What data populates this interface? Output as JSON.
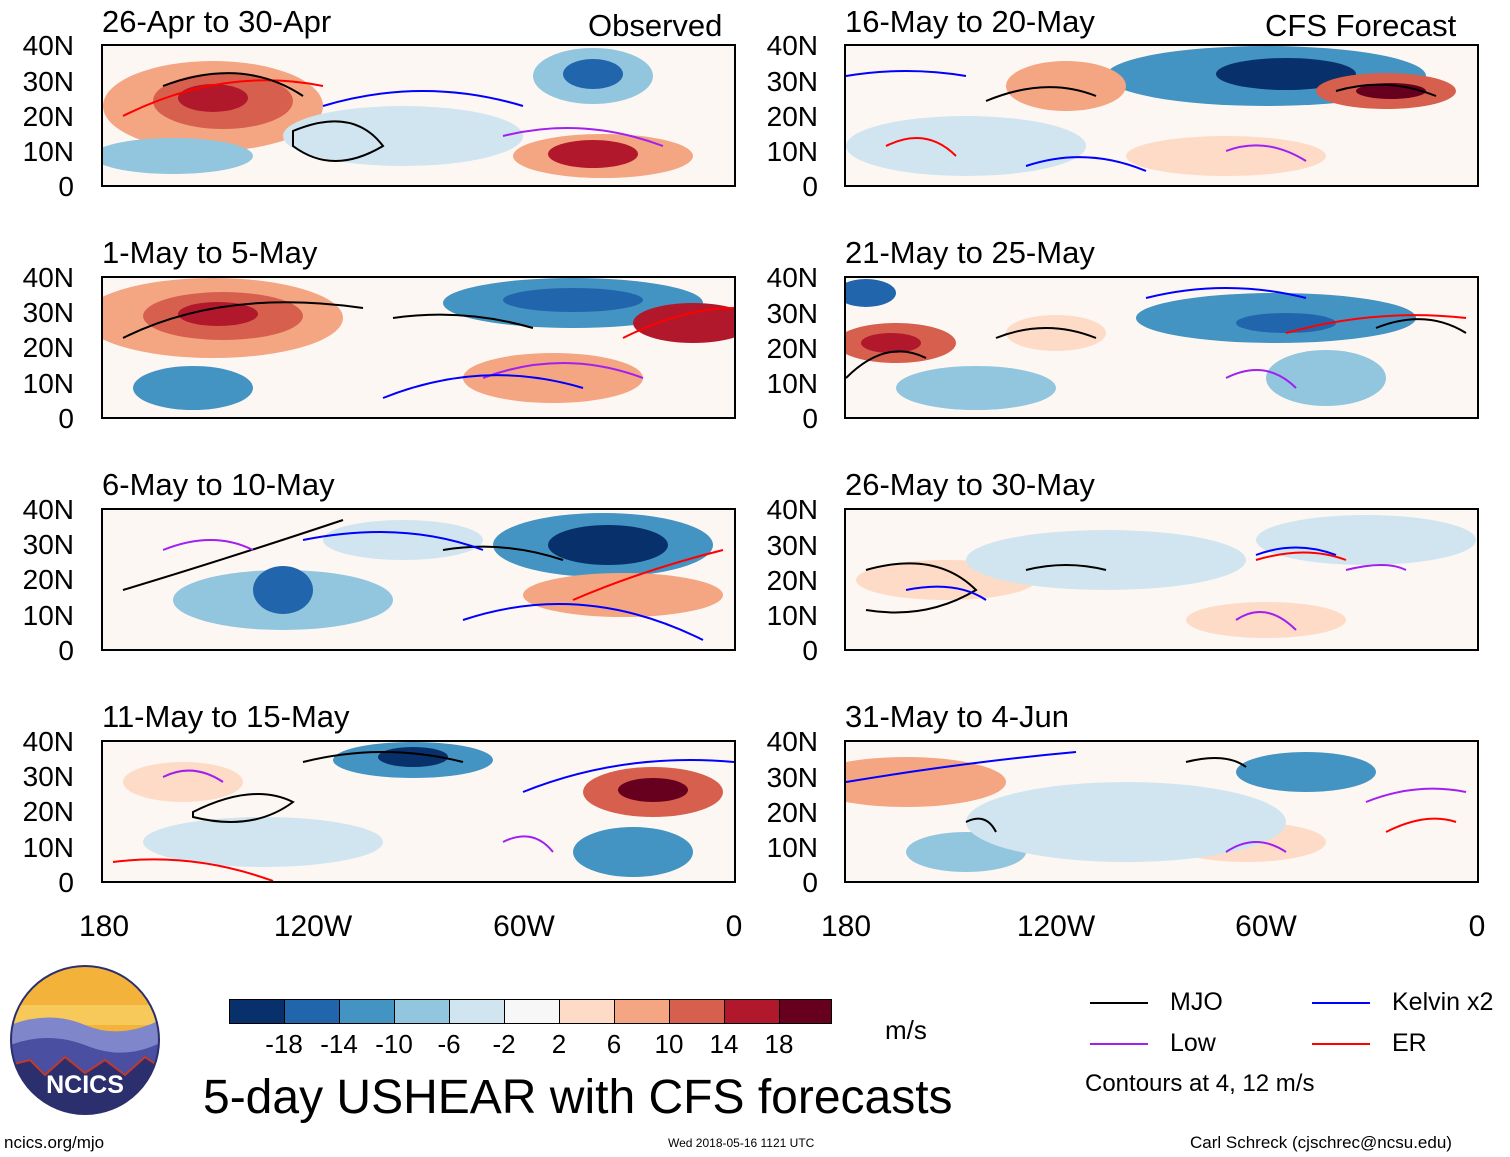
{
  "labels": {
    "observed": "Observed",
    "forecast": "CFS Forecast"
  },
  "panels": [
    {
      "title": "26-Apr to 30-Apr"
    },
    {
      "title": "1-May to 5-May"
    },
    {
      "title": "6-May to 10-May"
    },
    {
      "title": "11-May to 15-May"
    },
    {
      "title": "16-May to 20-May"
    },
    {
      "title": "21-May to 25-May"
    },
    {
      "title": "26-May to 30-May"
    },
    {
      "title": "31-May to 4-Jun"
    }
  ],
  "axes": {
    "lat_ticks": [
      "40N",
      "30N",
      "20N",
      "10N",
      "0"
    ],
    "lon_ticks": [
      "180",
      "120W",
      "60W",
      "0"
    ]
  },
  "colorbar": {
    "labels": [
      "-18",
      "-14",
      "-10",
      "-6",
      "-2",
      "2",
      "6",
      "10",
      "14",
      "18"
    ],
    "colors": [
      "#08306b",
      "#2166ac",
      "#4393c3",
      "#92c5de",
      "#d1e5f0",
      "#f7f7f7",
      "#fddbc7",
      "#f4a582",
      "#d6604d",
      "#b2182b",
      "#67001f"
    ],
    "units": "m/s"
  },
  "title": "5-day USHEAR with CFS forecasts",
  "legend": {
    "items": [
      {
        "label": "MJO",
        "color": "#000000"
      },
      {
        "label": "Kelvin x2",
        "color": "#0000ff"
      },
      {
        "label": "Low",
        "color": "#a020f0"
      },
      {
        "label": "ER",
        "color": "#ff0000"
      }
    ],
    "note": "Contours at 4, 12 m/s"
  },
  "logo": {
    "text": "NCICS"
  },
  "footer": {
    "site": "ncics.org/mjo",
    "timestamp": "Wed 2018-05-16 1121 UTC",
    "author": "Carl Schreck (cjschrec@ncsu.edu)"
  }
}
